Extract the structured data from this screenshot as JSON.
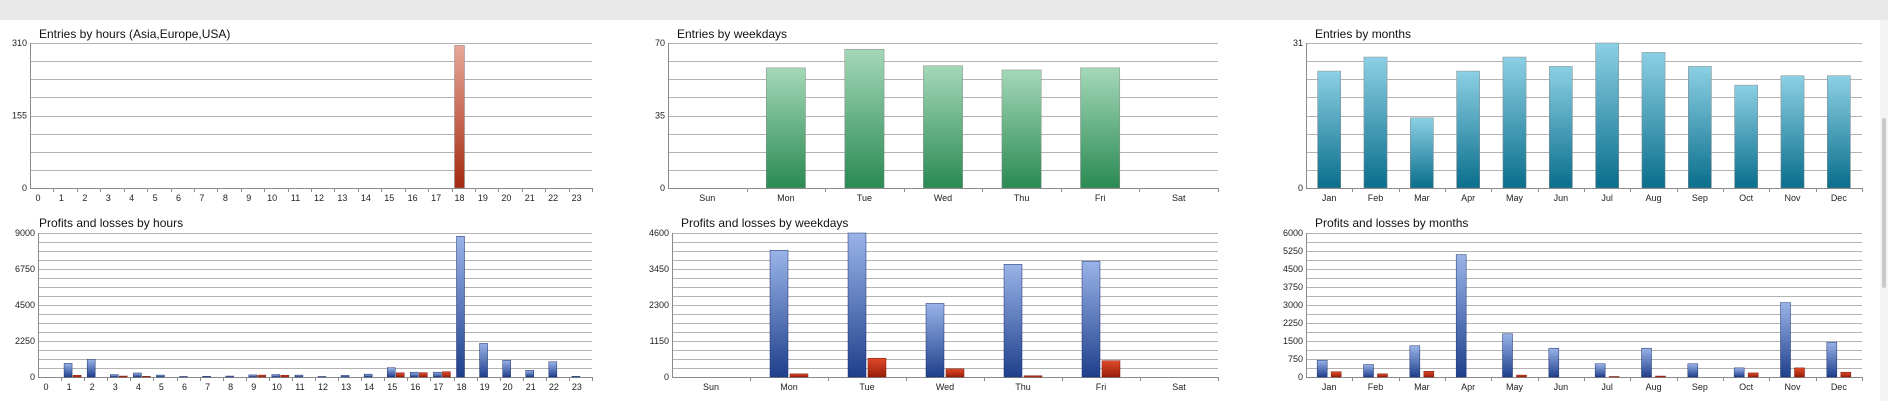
{
  "chart_data": [
    {
      "type": "bar",
      "title": "Entries by hours (Asia,Europe,USA)",
      "categories": [
        "0",
        "1",
        "2",
        "3",
        "4",
        "5",
        "6",
        "7",
        "8",
        "9",
        "10",
        "11",
        "12",
        "13",
        "14",
        "15",
        "16",
        "17",
        "18",
        "19",
        "20",
        "21",
        "22",
        "23"
      ],
      "series": [
        {
          "values": [
            0,
            0,
            0,
            0,
            0,
            0,
            0,
            0,
            0,
            0,
            0,
            0,
            0,
            0,
            0,
            0,
            0,
            0,
            305,
            0,
            0,
            0,
            0,
            0
          ]
        }
      ],
      "ylim": [
        0,
        310
      ],
      "yticks": [
        0,
        155,
        310
      ],
      "gradient": [
        "#e8a898",
        "#a42a10"
      ]
    },
    {
      "type": "bar",
      "title": "Entries by weekdays",
      "categories": [
        "Sun",
        "Mon",
        "Tue",
        "Wed",
        "Thu",
        "Fri",
        "Sat"
      ],
      "series": [
        {
          "values": [
            0,
            58,
            67,
            59,
            57,
            58,
            0
          ]
        }
      ],
      "ylim": [
        0,
        70
      ],
      "yticks": [
        0,
        35,
        70
      ],
      "gradient": [
        "#a4d8b8",
        "#2a8a52"
      ]
    },
    {
      "type": "bar",
      "title": "Entries by months",
      "categories": [
        "Jan",
        "Feb",
        "Mar",
        "Apr",
        "May",
        "Jun",
        "Jul",
        "Aug",
        "Sep",
        "Oct",
        "Nov",
        "Dec"
      ],
      "series": [
        {
          "values": [
            25,
            28,
            15,
            25,
            28,
            26,
            31,
            29,
            26,
            22,
            24,
            24
          ]
        }
      ],
      "ylim": [
        0,
        31
      ],
      "yticks": [
        0,
        31
      ],
      "gradient": [
        "#8cd0e4",
        "#0a6e8c"
      ]
    },
    {
      "type": "bar",
      "title": "Profits and losses by hours",
      "categories": [
        "0",
        "1",
        "2",
        "3",
        "4",
        "5",
        "6",
        "7",
        "8",
        "9",
        "10",
        "11",
        "12",
        "13",
        "14",
        "15",
        "16",
        "17",
        "18",
        "19",
        "20",
        "21",
        "22",
        "23"
      ],
      "series": [
        {
          "color": "blue",
          "values": [
            0,
            850,
            1100,
            150,
            250,
            120,
            30,
            40,
            60,
            130,
            150,
            120,
            30,
            100,
            180,
            580,
            300,
            300,
            8800,
            2100,
            1050,
            420,
            950,
            40
          ]
        },
        {
          "color": "red",
          "values": [
            0,
            110,
            0,
            60,
            40,
            0,
            0,
            0,
            0,
            120,
            110,
            0,
            0,
            0,
            0,
            260,
            270,
            330,
            0,
            0,
            0,
            0,
            0,
            0
          ]
        }
      ],
      "ylim": [
        0,
        9000
      ],
      "yticks": [
        0,
        2250,
        4500,
        6750,
        9000
      ]
    },
    {
      "type": "bar",
      "title": "Profits and losses by weekdays",
      "categories": [
        "Sun",
        "Mon",
        "Tue",
        "Wed",
        "Thu",
        "Fri",
        "Sat"
      ],
      "series": [
        {
          "color": "blue",
          "values": [
            0,
            4050,
            4600,
            2350,
            3600,
            3700,
            0
          ]
        },
        {
          "color": "red",
          "values": [
            0,
            100,
            600,
            260,
            40,
            520,
            0
          ]
        }
      ],
      "ylim": [
        0,
        4600
      ],
      "yticks": [
        0,
        1150,
        2300,
        3450,
        4600
      ]
    },
    {
      "type": "bar",
      "title": "Profits and losses by months",
      "categories": [
        "Jan",
        "Feb",
        "Mar",
        "Apr",
        "May",
        "Jun",
        "Jul",
        "Aug",
        "Sep",
        "Oct",
        "Nov",
        "Dec"
      ],
      "series": [
        {
          "color": "blue",
          "values": [
            700,
            520,
            1300,
            5100,
            1800,
            1200,
            550,
            1200,
            550,
            380,
            3100,
            1450
          ]
        },
        {
          "color": "red",
          "values": [
            220,
            130,
            240,
            0,
            80,
            0,
            20,
            40,
            0,
            170,
            380,
            200
          ]
        }
      ],
      "ylim": [
        0,
        6000
      ],
      "yticks": [
        0,
        750,
        1500,
        2250,
        3000,
        3750,
        4500,
        5250,
        6000
      ]
    }
  ]
}
